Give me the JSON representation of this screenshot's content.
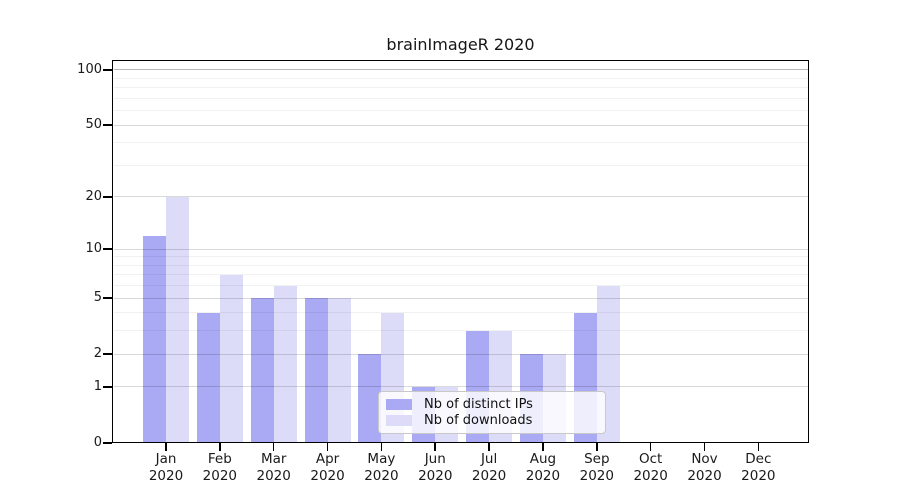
{
  "chart_data": {
    "type": "bar",
    "title": "brainImageR 2020",
    "categories": [
      {
        "month": "Jan",
        "year": "2020"
      },
      {
        "month": "Feb",
        "year": "2020"
      },
      {
        "month": "Mar",
        "year": "2020"
      },
      {
        "month": "Apr",
        "year": "2020"
      },
      {
        "month": "May",
        "year": "2020"
      },
      {
        "month": "Jun",
        "year": "2020"
      },
      {
        "month": "Jul",
        "year": "2020"
      },
      {
        "month": "Aug",
        "year": "2020"
      },
      {
        "month": "Sep",
        "year": "2020"
      },
      {
        "month": "Oct",
        "year": "2020"
      },
      {
        "month": "Nov",
        "year": "2020"
      },
      {
        "month": "Dec",
        "year": "2020"
      }
    ],
    "series": [
      {
        "name": "Nb of distinct IPs",
        "key": "distinct-ips",
        "color": "#a9a9f4",
        "values": [
          12,
          4,
          5,
          5,
          2,
          1,
          3,
          2,
          4,
          0,
          0,
          0
        ]
      },
      {
        "name": "Nb of downloads",
        "key": "downloads",
        "color": "#dcdcf8",
        "values": [
          20,
          7,
          6,
          5,
          4,
          1,
          3,
          2,
          6,
          0,
          0,
          0
        ]
      }
    ],
    "y_axis": {
      "scale": "log1p",
      "tick_labels": [
        "100",
        "50",
        "20",
        "10",
        "5",
        "2",
        "1",
        "0"
      ],
      "tick_values": [
        100,
        50,
        20,
        10,
        5,
        2,
        1,
        0
      ],
      "major_gridline_values": [
        1,
        2,
        5,
        10,
        20,
        50
      ],
      "top_gridline_value": 100,
      "minor_gridline_values": [
        3,
        4,
        6,
        7,
        8,
        9,
        30,
        40,
        60,
        70,
        80,
        90
      ],
      "axis_max": 113,
      "grid": true
    },
    "legend": {
      "position": "inside-lower-center",
      "entries": [
        "Nb of distinct IPs",
        "Nb of downloads"
      ]
    }
  },
  "style": {
    "grid_minor_color": "rgba(0,0,0,0.055)",
    "grid_major_color": "rgba(0,0,0,0.15)",
    "grid_top_color": "rgba(0,0,0,0.28)",
    "axis_color": "#000000",
    "background": "#ffffff"
  }
}
